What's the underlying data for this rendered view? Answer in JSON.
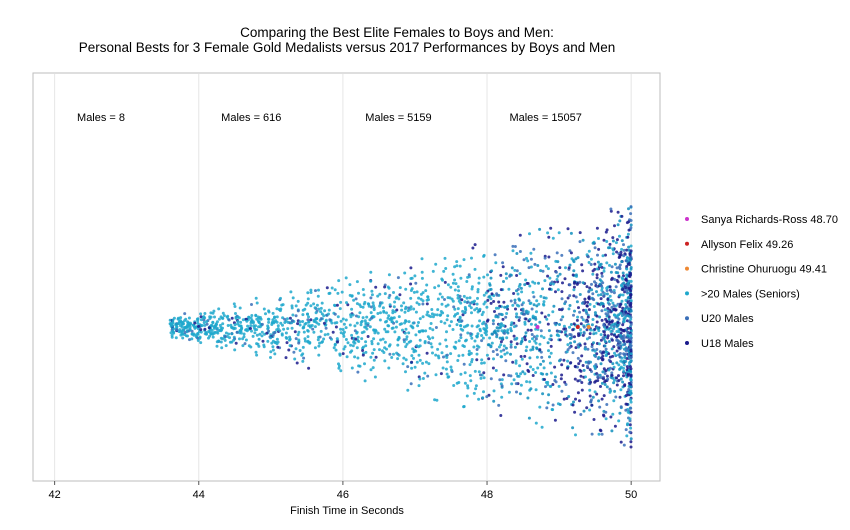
{
  "chart_data": {
    "type": "scatter",
    "title": "Comparing the Best Elite Females to Boys and Men:",
    "subtitle": "Personal Bests for 3 Female Gold Medalists versus 2017 Performances by Boys and Men",
    "xlabel": "Finish Time in Seconds",
    "ylabel": "",
    "xlim": [
      41.7,
      50.4
    ],
    "x_ticks": [
      "42",
      "44",
      "46",
      "48",
      "50"
    ],
    "x_tick_values": [
      42,
      44,
      46,
      48,
      50
    ],
    "grid": true,
    "legend_position": "right",
    "annotations": [
      {
        "text": "Males = 8",
        "x": 42.2
      },
      {
        "text": "Males = 616",
        "x": 44.2
      },
      {
        "text": "Males = 5159",
        "x": 46.2
      },
      {
        "text": "Males = 15057",
        "x": 48.2
      }
    ],
    "series": [
      {
        "name": "Sanya Richards-Ross 48.70",
        "color": "#cc33cc",
        "x_value": 48.7
      },
      {
        "name": "Allyson Felix 49.26",
        "color": "#cc2222",
        "x_value": 49.26
      },
      {
        "name": "Christine Ohuruogu 49.41",
        "color": "#ee8833",
        "x_value": 49.41
      },
      {
        "name": ">20 Males (Seniors)",
        "color": "#1fa8cc"
      },
      {
        "name": "U20 Males",
        "color": "#3a6fb8"
      },
      {
        "name": "U18 Males",
        "color": "#1a1a8c"
      }
    ],
    "male_counts_cumulative": {
      "x_max_42": 8,
      "x_max_44": 616,
      "x_max_46": 5159,
      "x_max_48": 15057
    }
  }
}
